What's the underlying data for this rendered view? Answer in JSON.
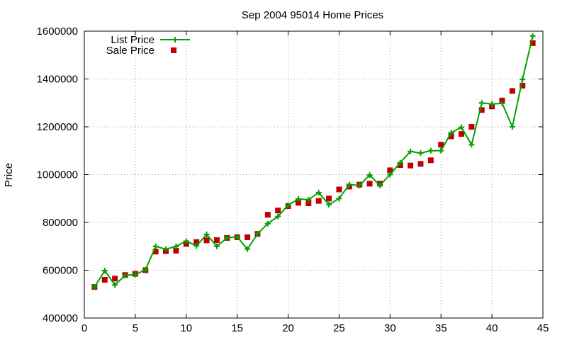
{
  "chart_data": {
    "type": "line",
    "title": "Sep 2004 95014 Home Prices",
    "xlabel": "",
    "ylabel": "Price",
    "xlim": [
      0,
      45
    ],
    "ylim": [
      400000,
      1600000
    ],
    "x_ticks": [
      0,
      5,
      10,
      15,
      20,
      25,
      30,
      35,
      40,
      45
    ],
    "y_ticks": [
      400000,
      600000,
      800000,
      1000000,
      1200000,
      1400000,
      1600000
    ],
    "grid": true,
    "legend_position": "top-left",
    "x": [
      1,
      2,
      3,
      4,
      5,
      6,
      7,
      8,
      9,
      10,
      11,
      12,
      13,
      14,
      15,
      16,
      17,
      18,
      19,
      20,
      21,
      22,
      23,
      24,
      25,
      26,
      27,
      28,
      29,
      30,
      31,
      32,
      33,
      34,
      35,
      36,
      37,
      38,
      39,
      40,
      41,
      42,
      43,
      44
    ],
    "series": [
      {
        "name": "List Price",
        "style": "linespoints",
        "color": "#00a000",
        "values": [
          530000,
          598000,
          538000,
          578000,
          582000,
          602000,
          700000,
          688000,
          700000,
          722000,
          702000,
          750000,
          700000,
          735000,
          740000,
          688000,
          752000,
          795000,
          825000,
          872000,
          898000,
          895000,
          925000,
          875000,
          900000,
          958000,
          955000,
          998000,
          955000,
          1000000,
          1050000,
          1097000,
          1090000,
          1100000,
          1100000,
          1175000,
          1198000,
          1125000,
          1300000,
          1295000,
          1298000,
          1200000,
          1398000,
          1580000
        ]
      },
      {
        "name": "Sale Price",
        "style": "points",
        "color": "#c00000",
        "values": [
          530000,
          560000,
          565000,
          580000,
          585000,
          600000,
          678000,
          680000,
          682000,
          710000,
          718000,
          725000,
          726000,
          735000,
          738000,
          738000,
          752000,
          832000,
          850000,
          868000,
          882000,
          880000,
          890000,
          900000,
          938000,
          950000,
          958000,
          962000,
          962000,
          1018000,
          1040000,
          1038000,
          1045000,
          1060000,
          1125000,
          1160000,
          1170000,
          1200000,
          1270000,
          1285000,
          1310000,
          1350000,
          1372000,
          1550000
        ]
      }
    ]
  }
}
